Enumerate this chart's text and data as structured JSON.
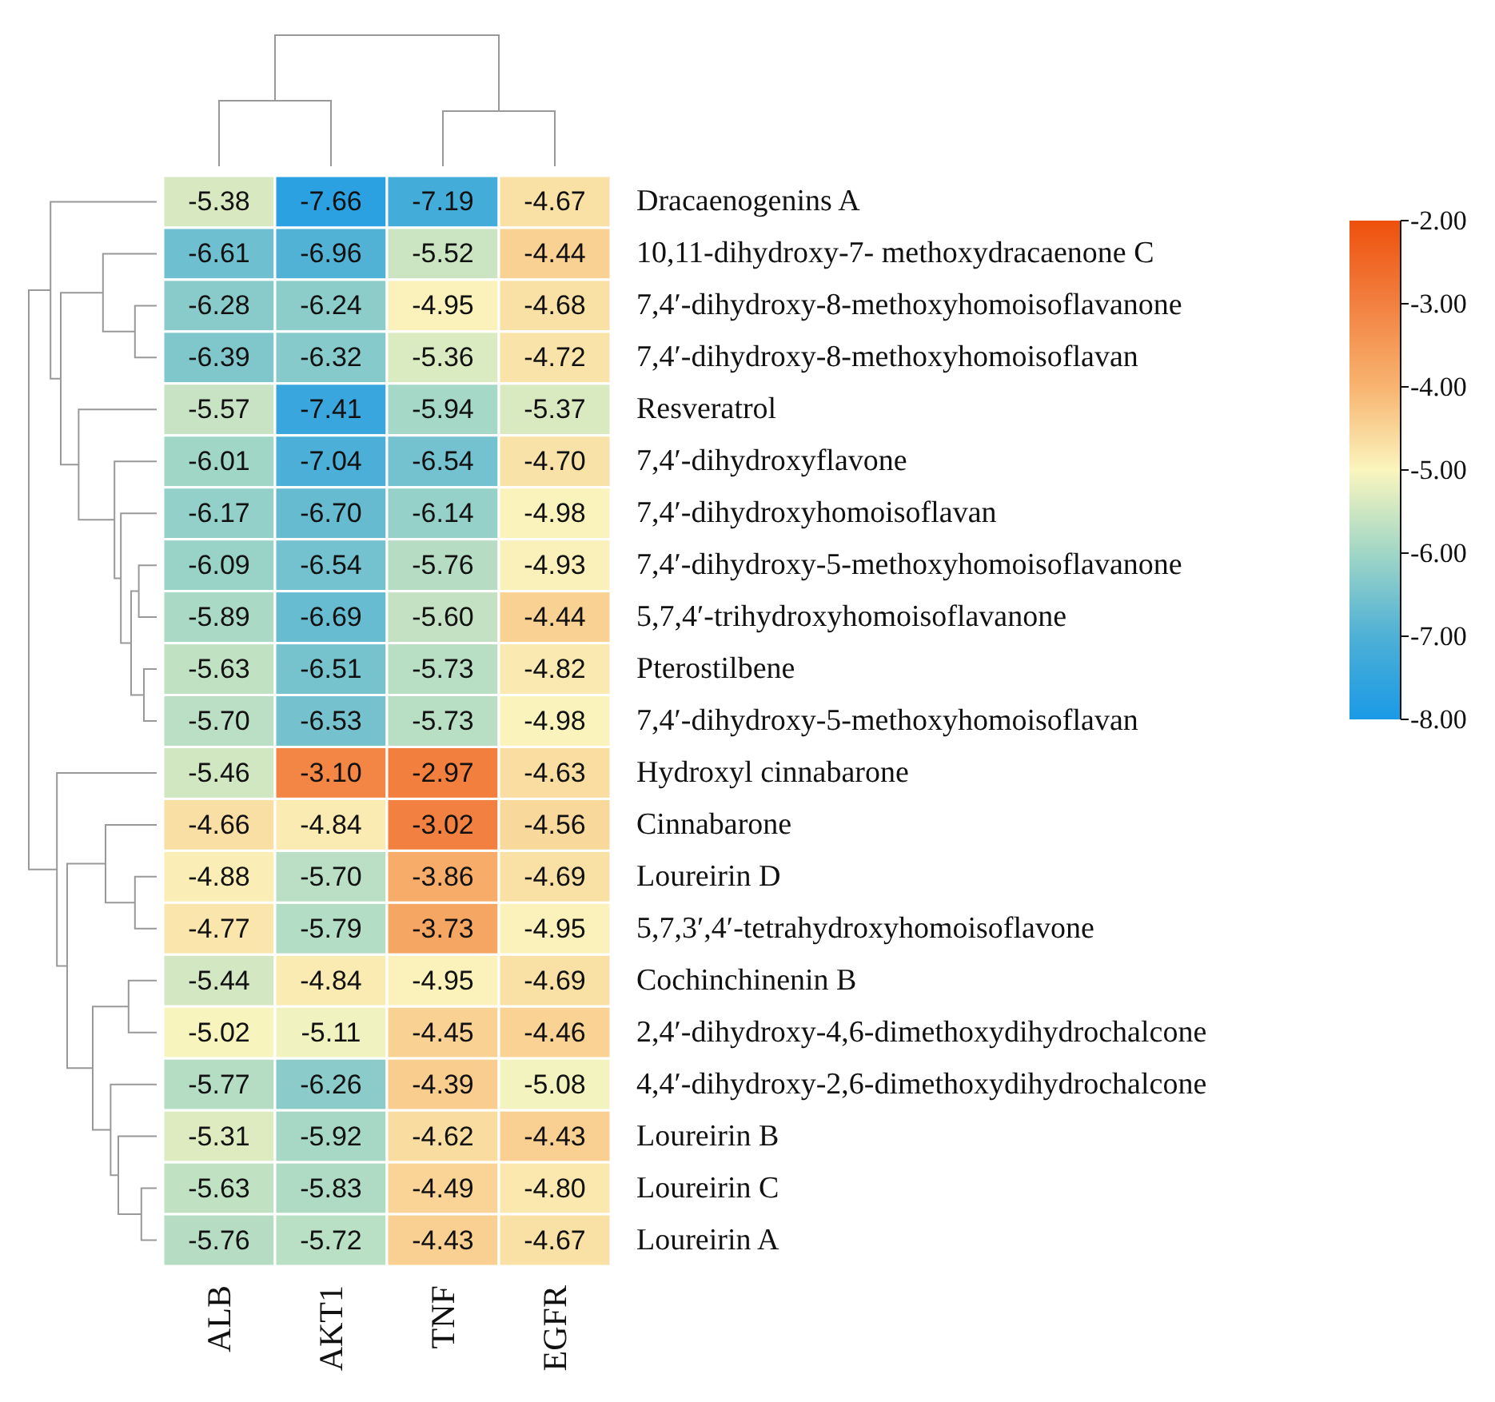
{
  "chart_data": {
    "type": "heatmap",
    "categories": [
      "ALB",
      "AKT1",
      "TNF",
      "EGFR"
    ],
    "y_categories": [
      "Dracaenogenins A",
      "10,11-dihydroxy-7- methoxydracaenone C",
      "7,4′-dihydroxy-8-methoxyhomoisoflavanone",
      "7,4′-dihydroxy-8-methoxyhomoisoflavan",
      "Resveratrol",
      "7,4′-dihydroxyflavone",
      "7,4′-dihydroxyhomoisoflavan",
      "7,4′-dihydroxy-5-methoxyhomoisoflavanone",
      "5,7,4′-trihydroxyhomoisoflavanone",
      "Pterostilbene",
      "7,4′-dihydroxy-5-methoxyhomoisoflavan",
      "Hydroxyl cinnabarone",
      "Cinnabarone",
      "Loureirin D",
      "5,7,3′,4′-tetrahydroxyhomoisoflavone",
      "Cochinchinenin B",
      "2,4′-dihydroxy-4,6-dimethoxydihydrochalcone",
      "4,4′-dihydroxy-2,6-dimethoxydihydrochalcone",
      "Loureirin B",
      "Loureirin C",
      "Loureirin A"
    ],
    "cells": [
      [
        -5.38,
        -7.66,
        -7.19,
        -4.67
      ],
      [
        -6.61,
        -6.96,
        -5.52,
        -4.44
      ],
      [
        -6.28,
        -6.24,
        -4.95,
        -4.68
      ],
      [
        -6.39,
        -6.32,
        -5.36,
        -4.72
      ],
      [
        -5.57,
        -7.41,
        -5.94,
        -5.37
      ],
      [
        -6.01,
        -7.04,
        -6.54,
        -4.7
      ],
      [
        -6.17,
        -6.7,
        -6.14,
        -4.98
      ],
      [
        -6.09,
        -6.54,
        -5.76,
        -4.93
      ],
      [
        -5.89,
        -6.69,
        -5.6,
        -4.44
      ],
      [
        -5.63,
        -6.51,
        -5.73,
        -4.82
      ],
      [
        -5.7,
        -6.53,
        -5.73,
        -4.98
      ],
      [
        -5.46,
        -3.1,
        -2.97,
        -4.63
      ],
      [
        -4.66,
        -4.84,
        -3.02,
        -4.56
      ],
      [
        -4.88,
        -5.7,
        -3.86,
        -4.69
      ],
      [
        -4.77,
        -5.79,
        -3.73,
        -4.95
      ],
      [
        -5.44,
        -4.84,
        -4.95,
        -4.69
      ],
      [
        -5.02,
        -5.11,
        -4.45,
        -4.46
      ],
      [
        -5.77,
        -6.26,
        -4.39,
        -5.08
      ],
      [
        -5.31,
        -5.92,
        -4.62,
        -4.43
      ],
      [
        -5.63,
        -5.83,
        -4.49,
        -4.8
      ],
      [
        -5.76,
        -5.72,
        -4.43,
        -4.67
      ]
    ],
    "cell_labels": [
      [
        "-5.38",
        "-7.66",
        "-7.19",
        "-4.67"
      ],
      [
        "-6.61",
        "-6.96",
        "-5.52",
        "-4.44"
      ],
      [
        "-6.28",
        "-6.24",
        "-4.95",
        "-4.68"
      ],
      [
        "-6.39",
        "-6.32",
        "-5.36",
        "-4.72"
      ],
      [
        "-5.57",
        "-7.41",
        "-5.94",
        "-5.37"
      ],
      [
        "-6.01",
        "-7.04",
        "-6.54",
        "-4.70"
      ],
      [
        "-6.17",
        "-6.70",
        "-6.14",
        "-4.98"
      ],
      [
        "-6.09",
        "-6.54",
        "-5.76",
        "-4.93"
      ],
      [
        "-5.89",
        "-6.69",
        "-5.60",
        "-4.44"
      ],
      [
        "-5.63",
        "-6.51",
        "-5.73",
        "-4.82"
      ],
      [
        "-5.70",
        "-6.53",
        "-5.73",
        "-4.98"
      ],
      [
        "-5.46",
        "-3.10",
        "-2.97",
        "-4.63"
      ],
      [
        "-4.66",
        "-4.84",
        "-3.02",
        "-4.56"
      ],
      [
        "-4.88",
        "-5.70",
        "-3.86",
        "-4.69"
      ],
      [
        "-4.77",
        "-5.79",
        "-3.73",
        "-4.95"
      ],
      [
        "-5.44",
        "-4.84",
        "-4.95",
        "-4.69"
      ],
      [
        "-5.02",
        "-5.11",
        "-4.45",
        "-4.46"
      ],
      [
        "-5.77",
        "-6.26",
        "-4.39",
        "-5.08"
      ],
      [
        "-5.31",
        "-5.92",
        "-4.62",
        "-4.43"
      ],
      [
        "-5.63",
        "-5.83",
        "-4.49",
        "-4.80"
      ],
      [
        "-5.76",
        "-5.72",
        "-4.43",
        "-4.67"
      ]
    ],
    "clim": [
      -2,
      -8
    ],
    "cticks": [
      {
        "value": -2,
        "label": "-2.00"
      },
      {
        "value": -3,
        "label": "-3.00"
      },
      {
        "value": -4,
        "label": "-4.00"
      },
      {
        "value": -5,
        "label": "-5.00"
      },
      {
        "value": -6,
        "label": "-6.00"
      },
      {
        "value": -7,
        "label": "-7.00"
      },
      {
        "value": -8,
        "label": "-8.00"
      }
    ],
    "data_labels": true
  }
}
